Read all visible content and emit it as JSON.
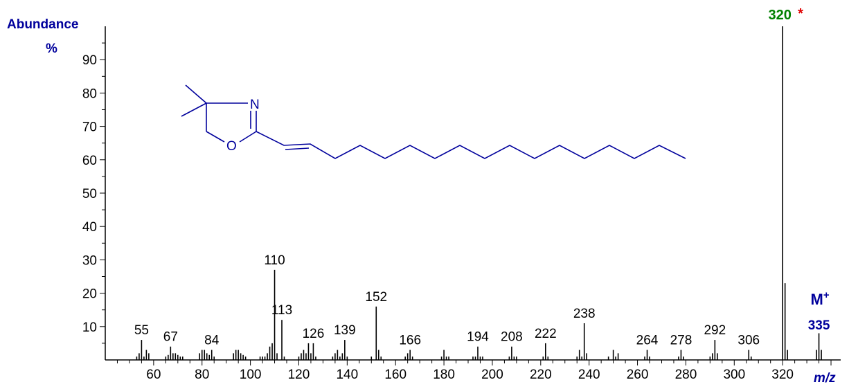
{
  "chart_data": {
    "type": "bar",
    "ylabel": "Abundance",
    "ylabel_unit": "%",
    "xlabel": "m/z",
    "xlim": [
      40,
      344
    ],
    "ylim": [
      0,
      100
    ],
    "x_ticks": [
      60,
      80,
      100,
      120,
      140,
      160,
      180,
      200,
      220,
      240,
      260,
      280,
      300,
      320
    ],
    "y_ticks": [
      10,
      20,
      30,
      40,
      50,
      60,
      70,
      80,
      90
    ],
    "grid": false,
    "peaks": [
      {
        "x": 53,
        "y": 1
      },
      {
        "x": 54,
        "y": 2
      },
      {
        "x": 55,
        "y": 6,
        "label": "55"
      },
      {
        "x": 56,
        "y": 1
      },
      {
        "x": 57,
        "y": 3
      },
      {
        "x": 58,
        "y": 2
      },
      {
        "x": 65,
        "y": 1
      },
      {
        "x": 66,
        "y": 1.5
      },
      {
        "x": 67,
        "y": 4,
        "label": "67"
      },
      {
        "x": 68,
        "y": 2
      },
      {
        "x": 69,
        "y": 2
      },
      {
        "x": 70,
        "y": 1.5
      },
      {
        "x": 71,
        "y": 1
      },
      {
        "x": 72,
        "y": 1
      },
      {
        "x": 79,
        "y": 2
      },
      {
        "x": 80,
        "y": 3
      },
      {
        "x": 81,
        "y": 3
      },
      {
        "x": 82,
        "y": 2
      },
      {
        "x": 83,
        "y": 1.5
      },
      {
        "x": 84,
        "y": 3,
        "label": "84"
      },
      {
        "x": 85,
        "y": 1
      },
      {
        "x": 93,
        "y": 2
      },
      {
        "x": 94,
        "y": 3
      },
      {
        "x": 95,
        "y": 3
      },
      {
        "x": 96,
        "y": 2
      },
      {
        "x": 97,
        "y": 1.5
      },
      {
        "x": 98,
        "y": 1
      },
      {
        "x": 104,
        "y": 1
      },
      {
        "x": 105,
        "y": 1
      },
      {
        "x": 106,
        "y": 1
      },
      {
        "x": 107,
        "y": 2
      },
      {
        "x": 108,
        "y": 4
      },
      {
        "x": 109,
        "y": 5
      },
      {
        "x": 110,
        "y": 27,
        "label": "110"
      },
      {
        "x": 111,
        "y": 2
      },
      {
        "x": 113,
        "y": 12,
        "label": "113"
      },
      {
        "x": 114,
        "y": 1
      },
      {
        "x": 120,
        "y": 1
      },
      {
        "x": 121,
        "y": 2
      },
      {
        "x": 122,
        "y": 3
      },
      {
        "x": 123,
        "y": 2
      },
      {
        "x": 124,
        "y": 5
      },
      {
        "x": 125,
        "y": 2
      },
      {
        "x": 126,
        "y": 5,
        "label": "126"
      },
      {
        "x": 127,
        "y": 1
      },
      {
        "x": 134,
        "y": 1
      },
      {
        "x": 135,
        "y": 2
      },
      {
        "x": 136,
        "y": 3
      },
      {
        "x": 137,
        "y": 1
      },
      {
        "x": 138,
        "y": 2
      },
      {
        "x": 139,
        "y": 6,
        "label": "139"
      },
      {
        "x": 140,
        "y": 1
      },
      {
        "x": 150,
        "y": 1
      },
      {
        "x": 152,
        "y": 16,
        "label": "152"
      },
      {
        "x": 153,
        "y": 3
      },
      {
        "x": 154,
        "y": 1
      },
      {
        "x": 164,
        "y": 1
      },
      {
        "x": 165,
        "y": 2
      },
      {
        "x": 166,
        "y": 3,
        "label": "166"
      },
      {
        "x": 167,
        "y": 1
      },
      {
        "x": 179,
        "y": 1
      },
      {
        "x": 180,
        "y": 3
      },
      {
        "x": 181,
        "y": 1
      },
      {
        "x": 182,
        "y": 1
      },
      {
        "x": 192,
        "y": 1
      },
      {
        "x": 193,
        "y": 1
      },
      {
        "x": 194,
        "y": 4,
        "label": "194"
      },
      {
        "x": 195,
        "y": 1
      },
      {
        "x": 196,
        "y": 1
      },
      {
        "x": 207,
        "y": 1
      },
      {
        "x": 208,
        "y": 4,
        "label": "208"
      },
      {
        "x": 209,
        "y": 1
      },
      {
        "x": 210,
        "y": 1
      },
      {
        "x": 221,
        "y": 1
      },
      {
        "x": 222,
        "y": 5,
        "label": "222"
      },
      {
        "x": 223,
        "y": 1
      },
      {
        "x": 235,
        "y": 1
      },
      {
        "x": 236,
        "y": 3
      },
      {
        "x": 237,
        "y": 1
      },
      {
        "x": 238,
        "y": 11,
        "label": "238"
      },
      {
        "x": 239,
        "y": 2
      },
      {
        "x": 248,
        "y": 1
      },
      {
        "x": 250,
        "y": 3
      },
      {
        "x": 251,
        "y": 1
      },
      {
        "x": 252,
        "y": 2
      },
      {
        "x": 263,
        "y": 1
      },
      {
        "x": 264,
        "y": 3,
        "label": "264"
      },
      {
        "x": 265,
        "y": 1
      },
      {
        "x": 277,
        "y": 1
      },
      {
        "x": 278,
        "y": 3,
        "label": "278"
      },
      {
        "x": 279,
        "y": 1
      },
      {
        "x": 290,
        "y": 1
      },
      {
        "x": 291,
        "y": 2
      },
      {
        "x": 292,
        "y": 6,
        "label": "292"
      },
      {
        "x": 293,
        "y": 2
      },
      {
        "x": 306,
        "y": 3,
        "label": "306"
      },
      {
        "x": 307,
        "y": 1
      },
      {
        "x": 320,
        "y": 100
      },
      {
        "x": 321,
        "y": 23
      },
      {
        "x": 322,
        "y": 3
      },
      {
        "x": 334,
        "y": 3
      },
      {
        "x": 335,
        "y": 8
      },
      {
        "x": 336,
        "y": 3
      }
    ],
    "base_peak": {
      "x": 320,
      "label": "320",
      "marker": "*"
    },
    "molecular_ion": {
      "x": 335,
      "label": "M",
      "superscript": "+",
      "value_label": "335"
    },
    "colors": {
      "bars": "#000000",
      "axis_labels": "#00009c",
      "base_peak_label": "#008000",
      "base_peak_marker": "#e00000",
      "structure": "#00009c"
    }
  },
  "structure": {
    "atoms": [
      "N",
      "O"
    ],
    "description_icon": "oxazoline-structure-icon"
  }
}
